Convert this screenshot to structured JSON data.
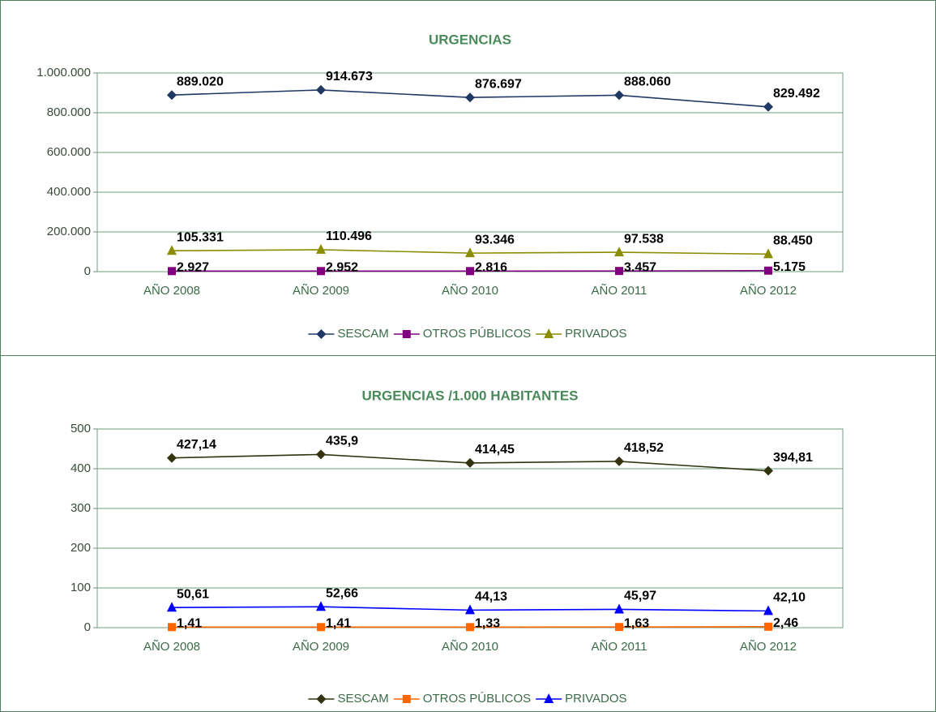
{
  "chart_data": [
    {
      "type": "line",
      "title": "URGENCIAS",
      "categories": [
        "AÑO 2008",
        "AÑO 2009",
        "AÑO 2010",
        "AÑO 2011",
        "AÑO 2012"
      ],
      "series": [
        {
          "name": "SESCAM",
          "color": "#1f3864",
          "marker": "diamond",
          "values": [
            889020,
            914673,
            876697,
            888060,
            829492
          ],
          "value_labels": [
            "889.020",
            "914.673",
            "876.697",
            "888.060",
            "829.492"
          ]
        },
        {
          "name": "OTROS PÚBLICOS",
          "color": "#800080",
          "marker": "square",
          "values": [
            2927,
            2952,
            2816,
            3457,
            5175
          ],
          "value_labels": [
            "2.927",
            "2.952",
            "2.816",
            "3.457",
            "5.175"
          ]
        },
        {
          "name": "PRIVADOS",
          "color": "#8c8c00",
          "marker": "triangle",
          "values": [
            105331,
            110496,
            93346,
            97538,
            88450
          ],
          "value_labels": [
            "105.331",
            "110.496",
            "93.346",
            "97.538",
            "88.450"
          ]
        }
      ],
      "ylim": [
        0,
        1000000
      ],
      "yticks": [
        0,
        {
          "value": 200000,
          "label": "200.000"
        },
        {
          "value": 400000,
          "label": "400.000"
        },
        {
          "value": 600000,
          "label": "600.000"
        },
        {
          "value": 800000,
          "label": "800.000"
        },
        {
          "value": 1000000,
          "label": "1.000.000"
        }
      ],
      "grid": true,
      "legend": "bottom"
    },
    {
      "type": "line",
      "title": "URGENCIAS /1.000 HABITANTES",
      "categories": [
        "AÑO 2008",
        "AÑO 2009",
        "AÑO 2010",
        "AÑO 2011",
        "AÑO 2012"
      ],
      "series": [
        {
          "name": "SESCAM",
          "color": "#333310",
          "marker": "diamond",
          "values": [
            427.14,
            435.9,
            414.45,
            418.52,
            394.81
          ],
          "value_labels": [
            "427,14",
            "435,9",
            "414,45",
            "418,52",
            "394,81"
          ]
        },
        {
          "name": "OTROS PÚBLICOS",
          "color": "#ff6600",
          "marker": "square",
          "values": [
            1.41,
            1.41,
            1.33,
            1.63,
            2.46
          ],
          "value_labels": [
            "1,41",
            "1,41",
            "1,33",
            "1,63",
            "2,46"
          ]
        },
        {
          "name": "PRIVADOS",
          "color": "#0000ff",
          "marker": "triangle",
          "values": [
            50.61,
            52.66,
            44.13,
            45.97,
            42.1
          ],
          "value_labels": [
            "50,61",
            "52,66",
            "44,13",
            "45,97",
            "42,10"
          ]
        }
      ],
      "ylim": [
        0,
        500
      ],
      "yticks": [
        0,
        100,
        200,
        300,
        400,
        500
      ],
      "grid": true,
      "legend": "bottom"
    }
  ]
}
